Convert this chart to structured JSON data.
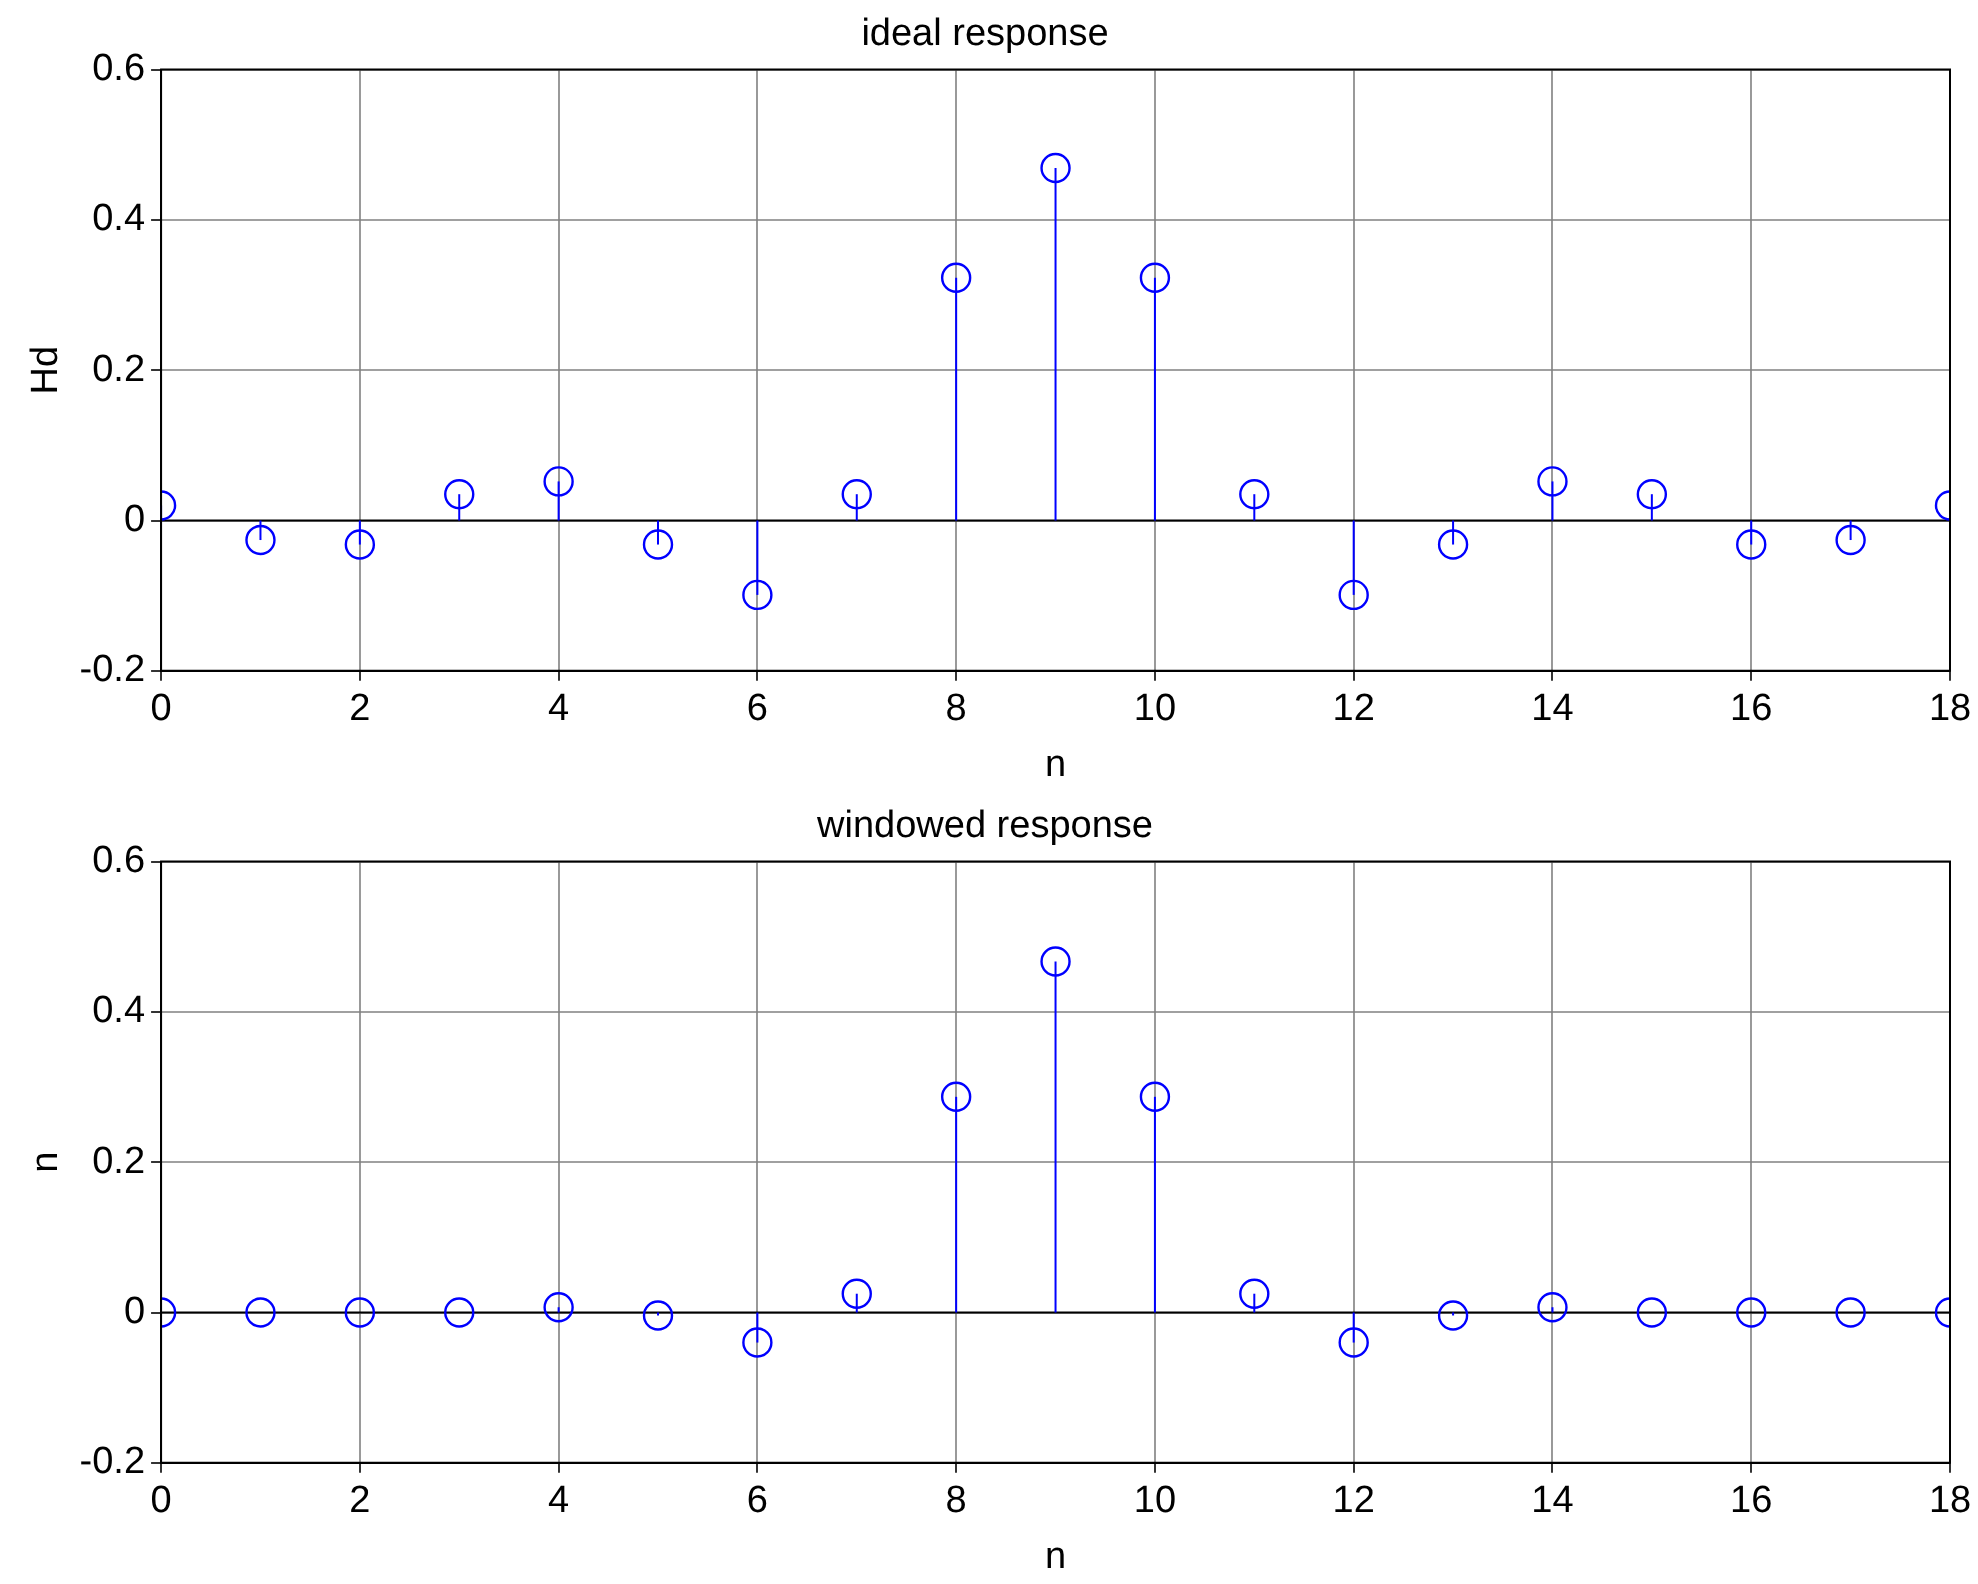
{
  "chart_data": [
    {
      "type": "lollipop",
      "title": "ideal response",
      "xlabel": "n",
      "ylabel": "Hd",
      "x": [
        0,
        1,
        2,
        3,
        4,
        5,
        6,
        7,
        8,
        9,
        10,
        11,
        12,
        13,
        14,
        15,
        16,
        17,
        18
      ],
      "series": [
        {
          "color": "#0000ff",
          "values": [
            0.02,
            -0.026,
            -0.032,
            0.035,
            0.052,
            -0.032,
            -0.099,
            0.035,
            0.323,
            0.469,
            0.323,
            0.035,
            -0.099,
            -0.032,
            0.052,
            0.035,
            -0.032,
            -0.026,
            0.02
          ]
        }
      ],
      "xlim": [
        0,
        18
      ],
      "xticks": [
        0,
        2,
        4,
        6,
        8,
        10,
        12,
        14,
        16,
        18
      ],
      "ylim": [
        -0.2,
        0.6
      ],
      "yticks": [
        -0.2,
        0,
        0.2,
        0.4,
        0.6
      ],
      "grid": true,
      "marker": "circle"
    },
    {
      "type": "lollipop",
      "title": "windowed response",
      "xlabel": "n",
      "ylabel": "n",
      "x": [
        0,
        1,
        2,
        3,
        4,
        5,
        6,
        7,
        8,
        9,
        10,
        11,
        12,
        13,
        14,
        15,
        16,
        17,
        18
      ],
      "series": [
        {
          "color": "#0000ff",
          "values": [
            0,
            0,
            0,
            0,
            0.007,
            -0.004,
            -0.04,
            0.025,
            0.287,
            0.467,
            0.287,
            0.025,
            -0.04,
            -0.004,
            0.007,
            0,
            0,
            0,
            0
          ]
        }
      ],
      "xlim": [
        0,
        18
      ],
      "xticks": [
        0,
        2,
        4,
        6,
        8,
        10,
        12,
        14,
        16,
        18
      ],
      "ylim": [
        -0.2,
        0.6
      ],
      "yticks": [
        -0.2,
        0,
        0.2,
        0.4,
        0.6
      ],
      "grid": true,
      "marker": "circle"
    }
  ]
}
